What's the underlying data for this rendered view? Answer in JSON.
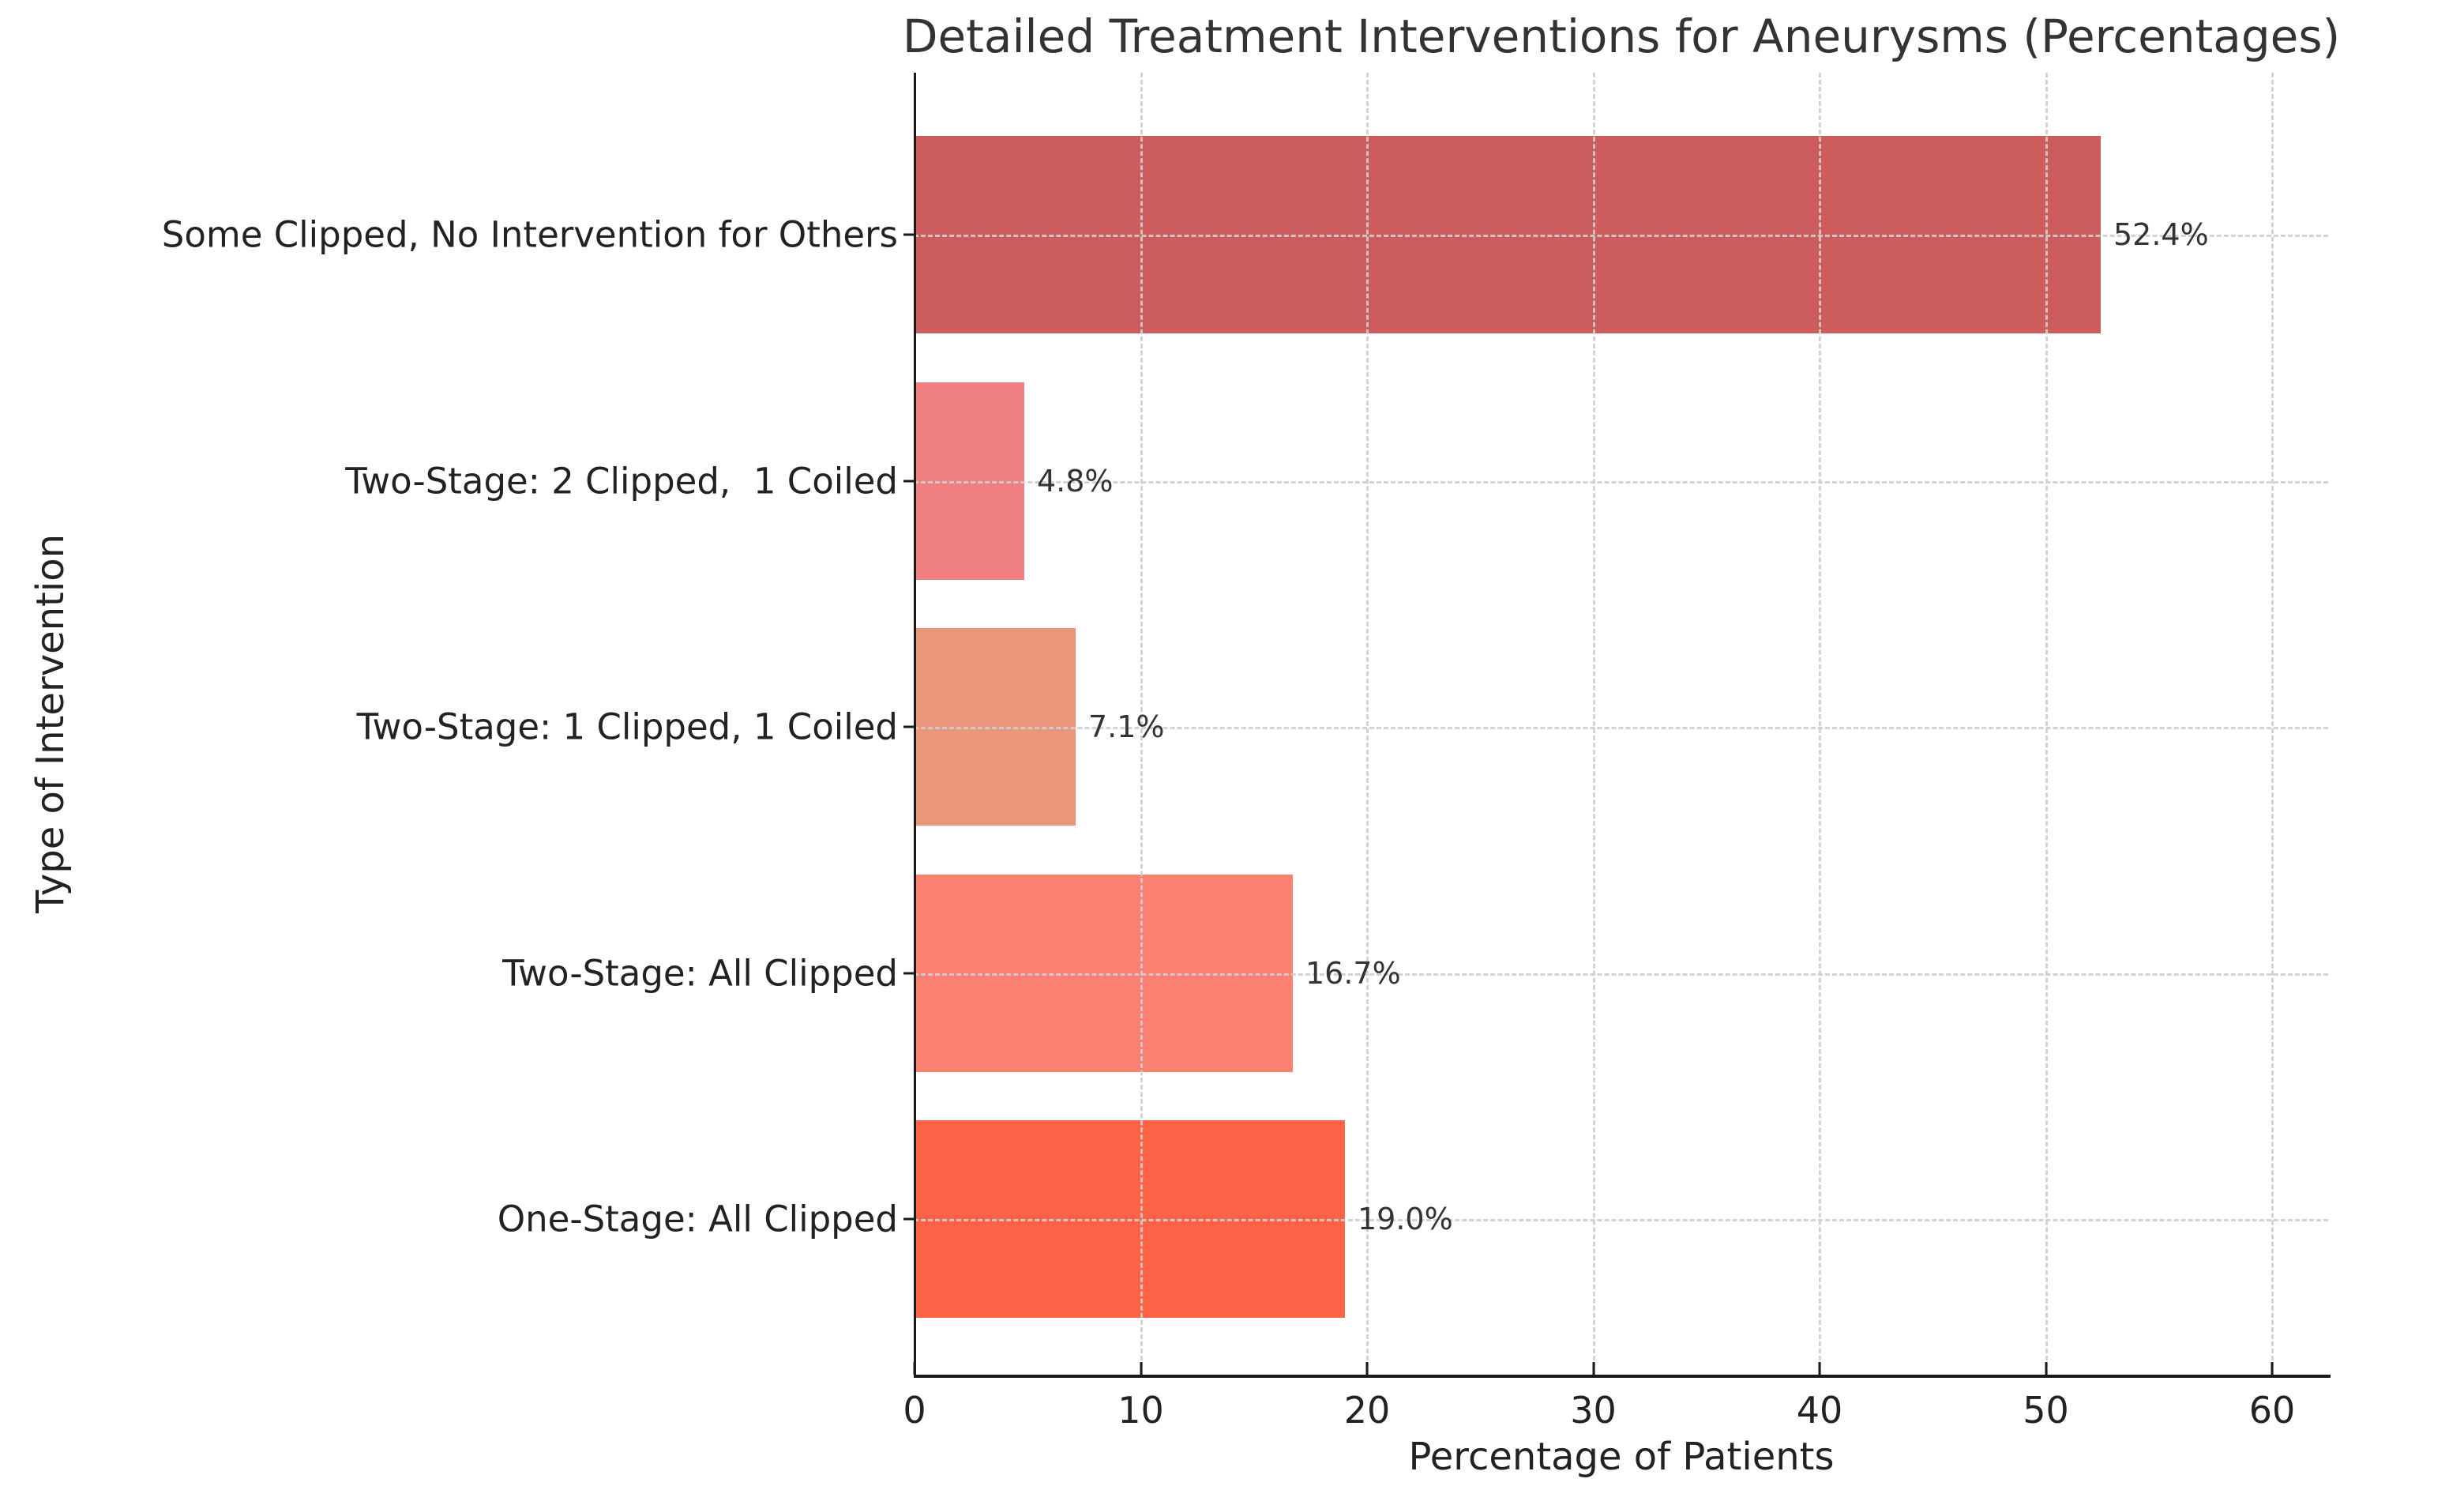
{
  "chart_data": {
    "type": "bar",
    "orientation": "horizontal",
    "title": "Detailed Treatment Interventions for Aneurysms (Percentages)",
    "xlabel": "Percentage of Patients",
    "ylabel": "Type of Intervention",
    "categories": [
      "Some Clipped, No Intervention for Others",
      "Two-Stage: 2 Clipped,  1 Coiled",
      "Two-Stage: 1 Clipped, 1 Coiled",
      "Two-Stage: All Clipped",
      "One-Stage: All Clipped"
    ],
    "values": [
      52.4,
      4.8,
      7.1,
      16.7,
      19.0
    ],
    "value_labels": [
      "52.4%",
      "4.8%",
      "7.1%",
      "16.7%",
      "19.0%"
    ],
    "bar_colors": [
      "#cd5c5c",
      "#f08080",
      "#e9967a",
      "#fa8072",
      "#ff6347"
    ],
    "x_ticks": [
      0,
      10,
      20,
      30,
      40,
      50,
      60
    ],
    "xlim": [
      0,
      62.5
    ],
    "grid": {
      "style": "dashed",
      "color": "#cccccc",
      "axis": "both"
    },
    "background": "#ffffff"
  }
}
